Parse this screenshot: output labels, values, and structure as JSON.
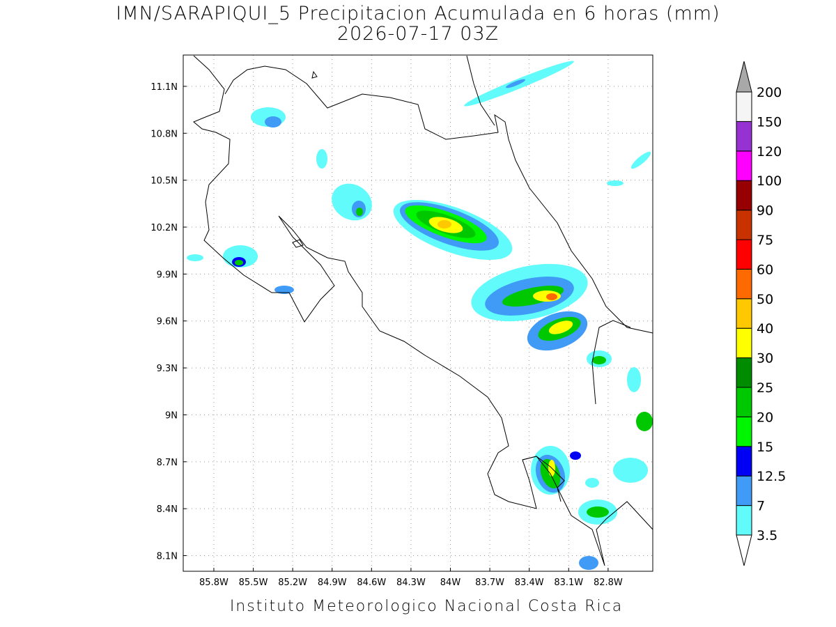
{
  "title": "IMN/SARAPIQUI_5 Precipitacion Acumulada en 6 horas (mm)",
  "subtitle": "2026-07-17 03Z",
  "map": {
    "xlim": [
      -86.033,
      -82.46
    ],
    "ylim": [
      8.0,
      11.3
    ],
    "xticks": [
      {
        "value": -85.8,
        "label": "85.8W"
      },
      {
        "value": -85.5,
        "label": "85.5W"
      },
      {
        "value": -85.2,
        "label": "85.2W"
      },
      {
        "value": -84.9,
        "label": "84.9W"
      },
      {
        "value": -84.6,
        "label": "84.6W"
      },
      {
        "value": -84.3,
        "label": "84.3W"
      },
      {
        "value": -84.0,
        "label": "84W"
      },
      {
        "value": -83.7,
        "label": "83.7W"
      },
      {
        "value": -83.4,
        "label": "83.4W"
      },
      {
        "value": -83.1,
        "label": "83.1W"
      },
      {
        "value": -82.8,
        "label": "82.8W"
      }
    ],
    "yticks": [
      {
        "value": 8.1,
        "label": "8.1N"
      },
      {
        "value": 8.4,
        "label": "8.4N"
      },
      {
        "value": 8.7,
        "label": "8.7N"
      },
      {
        "value": 9.0,
        "label": "9N"
      },
      {
        "value": 9.3,
        "label": "9.3N"
      },
      {
        "value": 9.6,
        "label": "9.6N"
      },
      {
        "value": 9.9,
        "label": "9.9N"
      },
      {
        "value": 10.2,
        "label": "10.2N"
      },
      {
        "value": 10.5,
        "label": "10.5N"
      },
      {
        "value": 10.8,
        "label": "10.8N"
      },
      {
        "value": 11.1,
        "label": "11.1N"
      }
    ],
    "grid": true
  },
  "colorbar": {
    "levels": [
      3.5,
      7,
      12.5,
      15,
      20,
      25,
      30,
      40,
      50,
      60,
      75,
      90,
      100,
      120,
      150,
      200
    ],
    "colors": [
      "#ffffff",
      "#62fbfb",
      "#3f9bf5",
      "#0000f5",
      "#00f500",
      "#00c800",
      "#008c00",
      "#ffff00",
      "#ffc800",
      "#ff6a00",
      "#ff0000",
      "#c83200",
      "#960000",
      "#ff00ff",
      "#9632d2",
      "#f5f5f5",
      "#a8a8a8"
    ]
  },
  "footer": "Instituto Meteorologico Nacional Costa Rica"
}
